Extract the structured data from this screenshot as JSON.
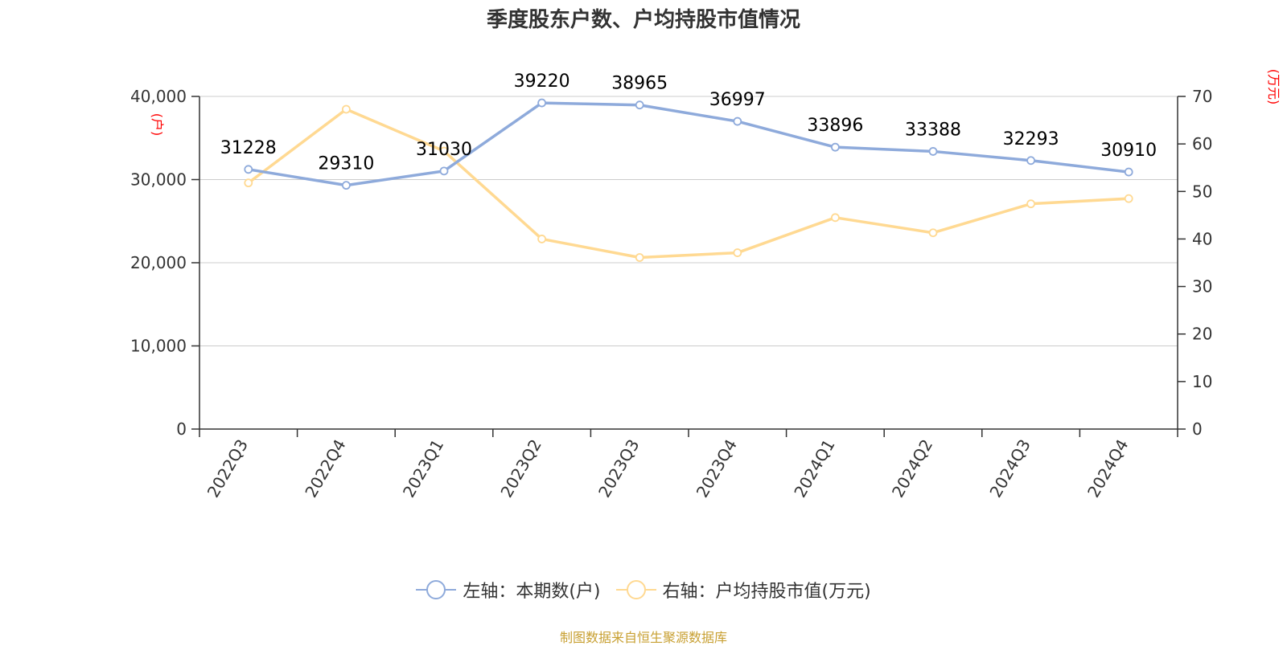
{
  "colors": {
    "series_left": "#8eaadb",
    "series_right": "#ffd992",
    "unit_label": "#ff0000",
    "source_text": "#c8a032",
    "axis": "#333333",
    "grid": "#cccccc"
  },
  "legend": {
    "left_label": "左轴：本期数(户)",
    "right_label": "右轴：户均持股市值(万元)"
  },
  "source": "制图数据来自恒生聚源数据库",
  "chart_data": {
    "type": "line",
    "title": "季度股东户数、户均持股市值情况",
    "categories": [
      "2022Q3",
      "2022Q4",
      "2023Q1",
      "2023Q2",
      "2023Q3",
      "2023Q4",
      "2024Q1",
      "2024Q2",
      "2024Q3",
      "2024Q4"
    ],
    "y_left": {
      "unit": "(户)",
      "range": [
        0,
        40000
      ],
      "ticks": [
        0,
        10000,
        20000,
        30000,
        40000
      ],
      "tick_labels": [
        "0",
        "10,000",
        "20,000",
        "30,000",
        "40,000"
      ]
    },
    "y_right": {
      "unit": "(万元)",
      "range": [
        0,
        70
      ],
      "ticks": [
        0,
        10,
        20,
        30,
        40,
        50,
        60,
        70
      ],
      "tick_labels": [
        "0",
        "10",
        "20",
        "30",
        "40",
        "50",
        "60",
        "70"
      ]
    },
    "grid": true,
    "legend_position": "bottom",
    "series": [
      {
        "name": "左轴：本期数(户)",
        "axis": "left",
        "values": [
          31228,
          29310,
          31030,
          39220,
          38965,
          36997,
          33896,
          33388,
          32293,
          30910
        ],
        "labels": [
          "31228",
          "29310",
          "31030",
          "39220",
          "38965",
          "36997",
          "33896",
          "33388",
          "32293",
          "30910"
        ]
      },
      {
        "name": "右轴：户均持股市值(万元)",
        "axis": "right",
        "values": [
          51.8,
          67.3,
          58.5,
          40.0,
          36.1,
          37.1,
          44.5,
          41.3,
          47.4,
          48.5
        ]
      }
    ]
  }
}
